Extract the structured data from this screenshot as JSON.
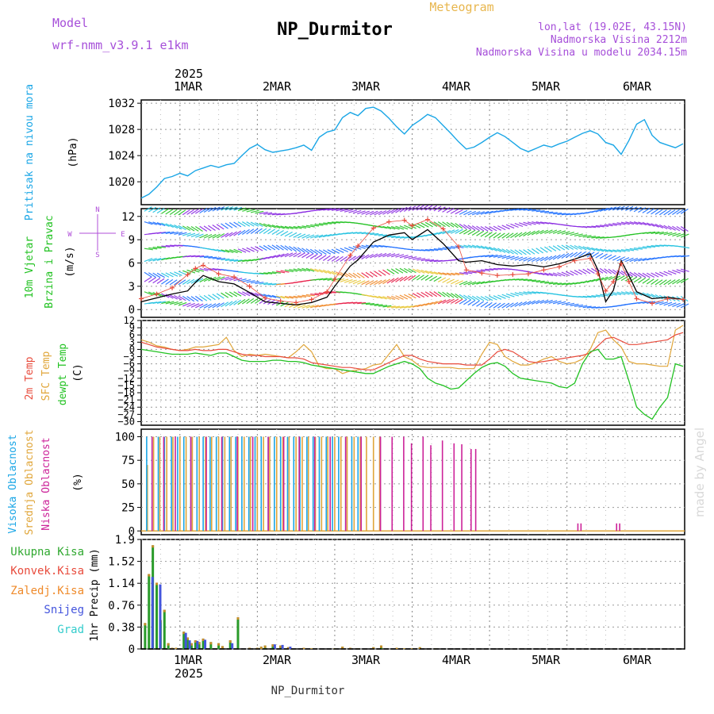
{
  "header": {
    "model_label": "Model",
    "model_name": "wrf-nmm_v3.9.1 e1km",
    "title": "NP_Durmitor",
    "subtitle": "Meteogram",
    "coords": "lon,lat (19.02E, 43.15N)",
    "altitude": "Nadmorska Visina 2212m",
    "altitude_model": "Nadmorska Visina u modelu 2034.15m",
    "watermark": "made by Angel",
    "footer": "NP_Durmitor"
  },
  "colors": {
    "pressure": "#1aa6e6",
    "wind_speed": "#000000",
    "gust": "#e84b3c",
    "t2m": "#e84b3c",
    "sfc": "#e0a63a",
    "dewpt": "#22c222",
    "high": "#1aa6e6",
    "mid": "#e0a63a",
    "low": "#cc2299",
    "precip_total": "#2a9b2a",
    "precip_conv": "#e84b3c",
    "precip_frz": "#ef8a2a",
    "precip_snow": "#4455dd",
    "precip_grad": "#33cccc"
  },
  "chart_data": [
    {
      "type": "line",
      "panel": "pressure",
      "ylabel_1": "Pritisak na nivou mora",
      "ylabel_unit": "(hPa)",
      "ylim": [
        1016.5,
        1032.5
      ],
      "yticks": [
        "1020",
        "1024",
        "1028",
        "1032"
      ],
      "top_axis": {
        "year": "2025",
        "days": [
          "1MAR",
          "2MAR",
          "3MAR",
          "4MAR",
          "5MAR",
          "6MAR"
        ]
      },
      "x": [
        -0.5,
        -0.4,
        -0.3,
        -0.2,
        -0.1,
        0,
        0.1,
        0.2,
        0.3,
        0.4,
        0.5,
        0.6,
        0.7,
        0.8,
        0.9,
        1,
        1.1,
        1.2,
        1.3,
        1.4,
        1.5,
        1.6,
        1.7,
        1.8,
        1.9,
        2,
        2.1,
        2.2,
        2.3,
        2.4,
        2.5,
        2.6,
        2.7,
        2.8,
        2.9,
        3,
        3.1,
        3.2,
        3.3,
        3.4,
        3.5,
        3.6,
        3.7,
        3.8,
        3.9,
        4,
        4.1,
        4.2,
        4.3,
        4.4,
        4.5,
        4.6,
        4.7,
        4.8,
        4.9,
        5,
        5.1,
        5.2,
        5.3,
        5.4,
        5.5,
        5.6,
        5.7,
        5.8,
        5.9,
        6,
        6.1,
        6.2,
        6.3,
        6.4,
        6.5
      ],
      "values": [
        1017.5,
        1018.1,
        1019.2,
        1020.5,
        1020.8,
        1021.3,
        1020.9,
        1021.7,
        1022.1,
        1022.5,
        1022.2,
        1022.6,
        1022.8,
        1024.0,
        1025.1,
        1025.7,
        1024.9,
        1024.5,
        1024.7,
        1024.9,
        1025.2,
        1025.6,
        1024.8,
        1026.8,
        1027.6,
        1027.9,
        1029.8,
        1030.6,
        1030.1,
        1031.2,
        1031.4,
        1030.8,
        1029.7,
        1028.4,
        1027.3,
        1028.6,
        1029.4,
        1030.3,
        1029.8,
        1028.6,
        1027.4,
        1026.1,
        1025.0,
        1025.3,
        1026.0,
        1026.8,
        1027.5,
        1026.9,
        1026.0,
        1025.1,
        1024.6,
        1025.1,
        1025.6,
        1025.3,
        1025.8,
        1026.2,
        1026.8,
        1027.4,
        1027.8,
        1027.3,
        1026.0,
        1025.6,
        1024.2,
        1026.3,
        1028.8,
        1029.5,
        1027.1,
        1026.0,
        1025.6,
        1025.2,
        1025.8
      ]
    },
    {
      "type": "line",
      "panel": "wind",
      "ylabel_1": "10m Vjetar",
      "ylabel_2": "Brzina i Pravac",
      "ylabel_unit": "(m/s)",
      "compass": {
        "north": "N",
        "south": "S",
        "west": "W",
        "east": "E"
      },
      "ylim": [
        -1,
        13
      ],
      "yticks": [
        "0",
        "3",
        "6",
        "9",
        "12"
      ],
      "series": [
        {
          "x": [
            -0.5,
            -0.3,
            -0.1,
            0.1,
            0.2,
            0.3,
            0.5,
            0.7,
            0.9,
            1.1,
            1.3,
            1.5,
            1.7,
            1.9,
            2.0,
            2.2,
            2.3,
            2.5,
            2.7,
            2.9,
            3.0,
            3.2,
            3.4,
            3.6,
            3.7,
            3.9,
            4.1,
            4.3,
            4.5,
            4.7,
            4.9,
            5.1,
            5.3,
            5.4,
            5.5,
            5.6,
            5.7,
            5.8,
            5.9,
            6.1,
            6.3,
            6.5
          ],
          "values": [
            1.0,
            1.5,
            2.0,
            2.4,
            3.5,
            4.4,
            3.6,
            3.3,
            2.2,
            1.0,
            0.8,
            0.6,
            0.9,
            1.6,
            3.0,
            5.6,
            6.4,
            8.7,
            9.6,
            9.9,
            9.0,
            10.3,
            8.5,
            6.3,
            6.1,
            6.3,
            5.8,
            5.6,
            5.8,
            5.5,
            5.9,
            6.5,
            7.2,
            5.1,
            1.0,
            2.5,
            6.3,
            4.4,
            2.3,
            1.4,
            1.6,
            1.3
          ]
        },
        {
          "x": [
            -0.5,
            -0.3,
            -0.1,
            0.1,
            0.2,
            0.3,
            0.5,
            0.7,
            0.9,
            1.1,
            1.3,
            1.5,
            1.7,
            1.9,
            2.0,
            2.2,
            2.3,
            2.5,
            2.7,
            2.9,
            3.0,
            3.2,
            3.4,
            3.6,
            3.7,
            3.9,
            4.1,
            4.3,
            4.5,
            4.7,
            4.9,
            5.1,
            5.3,
            5.4,
            5.5,
            5.6,
            5.7,
            5.8,
            5.9,
            6.1,
            6.3,
            6.5
          ],
          "values": [
            1.4,
            2.0,
            2.8,
            4.5,
            5.3,
            5.7,
            4.6,
            4.2,
            3.0,
            1.5,
            1.1,
            0.9,
            1.3,
            2.3,
            3.9,
            7.0,
            8.2,
            10.5,
            11.3,
            11.5,
            10.8,
            11.6,
            10.4,
            8.1,
            5.1,
            4.7,
            4.4,
            4.5,
            4.6,
            5.1,
            5.5,
            6.3,
            6.6,
            4.6,
            2.4,
            3.6,
            5.9,
            3.6,
            1.4,
            0.8,
            1.4,
            1.3
          ]
        }
      ]
    },
    {
      "type": "line",
      "panel": "temperature",
      "ylabel_1": "2m Temp",
      "ylabel_2": "SFC Temp",
      "ylabel_3": "dewpt Temp",
      "ylabel_unit": "(C)",
      "ylim": [
        -31.5,
        12
      ],
      "yticks": [
        "12",
        "9",
        "6",
        "3",
        "0",
        "−3",
        "−6",
        "−9",
        "−12",
        "−15",
        "−18",
        "−21",
        "−24",
        "−27",
        "−30"
      ],
      "x": [
        -0.5,
        -0.4,
        -0.3,
        -0.2,
        -0.1,
        0,
        0.1,
        0.2,
        0.3,
        0.4,
        0.5,
        0.6,
        0.7,
        0.8,
        0.9,
        1,
        1.1,
        1.2,
        1.3,
        1.4,
        1.5,
        1.6,
        1.7,
        1.8,
        1.9,
        2,
        2.1,
        2.2,
        2.3,
        2.4,
        2.5,
        2.6,
        2.7,
        2.8,
        2.9,
        3,
        3.1,
        3.2,
        3.3,
        3.4,
        3.5,
        3.6,
        3.7,
        3.8,
        3.9,
        4,
        4.1,
        4.2,
        4.3,
        4.4,
        4.5,
        4.6,
        4.7,
        4.8,
        4.9,
        5,
        5.1,
        5.2,
        5.3,
        5.4,
        5.5,
        5.6,
        5.7,
        5.8,
        5.9,
        6,
        6.1,
        6.2,
        6.3,
        6.4,
        6.5
      ],
      "series": [
        {
          "values": [
            3,
            2,
            1,
            0.5,
            0,
            -0.5,
            -0.5,
            0,
            -0.5,
            -0.5,
            0,
            0,
            -1,
            -2,
            -2.5,
            -2.5,
            -3,
            -3,
            -3,
            -3.5,
            -3.5,
            -4,
            -5.5,
            -6,
            -6.5,
            -7,
            -7.5,
            -7.5,
            -8,
            -8.5,
            -8.5,
            -7,
            -5.5,
            -4,
            -2.5,
            -2.5,
            -4,
            -5,
            -5.5,
            -6,
            -6,
            -6,
            -6.5,
            -6.5,
            -6.5,
            -4,
            -1,
            0,
            -1,
            -3,
            -5,
            -5.5,
            -5,
            -4.5,
            -4,
            -3.5,
            -3,
            -2.5,
            -1.5,
            1.5,
            4.5,
            5,
            3.5,
            2,
            2,
            2.5,
            3,
            3.5,
            4,
            6,
            7
          ]
        },
        {
          "values": [
            4,
            3,
            1.5,
            1,
            0,
            -0.5,
            0,
            1,
            1,
            1.5,
            2,
            5,
            -0.5,
            -3,
            -2,
            -2.5,
            -2,
            -2.5,
            -3,
            -3.5,
            -1,
            2,
            -1,
            -7,
            -8,
            -8,
            -10,
            -9,
            -8.5,
            -8,
            -6.5,
            -6,
            -2,
            2,
            -3,
            -4.5,
            -7,
            -7.5,
            -7.5,
            -7.5,
            -7.5,
            -8,
            -8,
            -8,
            -2,
            3,
            2,
            -3,
            -5,
            -6.5,
            -6.5,
            -5.5,
            -4,
            -3,
            -5,
            -6,
            -5.5,
            -4,
            0,
            7,
            8,
            4,
            1,
            -5,
            -6,
            -6,
            -6.5,
            -7,
            -7,
            8,
            10
          ]
        },
        {
          "values": [
            0,
            -0.5,
            -1,
            -1.5,
            -2,
            -2,
            -2,
            -1.5,
            -2,
            -2.5,
            -1.5,
            -1.5,
            -3,
            -4.5,
            -5,
            -5,
            -5,
            -4.5,
            -4.5,
            -5,
            -5,
            -5.5,
            -6.5,
            -7,
            -7.5,
            -8,
            -8.5,
            -9,
            -9.5,
            -10,
            -10,
            -8.5,
            -7,
            -6,
            -5,
            -6,
            -8,
            -12,
            -14,
            -15,
            -16.5,
            -16,
            -13,
            -10,
            -7.5,
            -6,
            -5.5,
            -7,
            -10,
            -12,
            -12.5,
            -13,
            -13.5,
            -14,
            -15.5,
            -16,
            -14,
            -6,
            -1,
            0,
            -4,
            -4,
            -3,
            -13,
            -24,
            -27,
            -29,
            -24,
            -20,
            -6,
            -7
          ]
        }
      ]
    },
    {
      "type": "bar",
      "panel": "cloud",
      "ylabel_1": "Visoka Oblacnost",
      "ylabel_2": "Srednja Oblacnost",
      "ylabel_3": "Niska Oblacnost",
      "ylabel_unit": "(%)",
      "ylim": [
        0,
        100
      ],
      "yticks": [
        "0",
        "25",
        "50",
        "75",
        "100"
      ],
      "high": {
        "x": [
          -0.45,
          -0.38,
          -0.3,
          -0.22,
          -0.13,
          -0.05,
          0.03,
          0.12,
          0.2,
          0.28,
          0.37,
          0.45,
          0.53,
          0.62,
          0.7,
          0.78,
          0.87,
          0.95,
          1.03,
          1.12,
          1.2,
          1.28,
          1.37,
          1.45,
          1.53,
          1.62,
          1.7,
          1.78,
          1.87,
          1.95,
          2.03,
          2.12,
          2.2,
          2.28
        ],
        "values": [
          100,
          100,
          100,
          100,
          100,
          100,
          100,
          100,
          100,
          100,
          100,
          100,
          100,
          100,
          100,
          100,
          100,
          100,
          100,
          100,
          100,
          100,
          100,
          100,
          100,
          100,
          100,
          100,
          100,
          100,
          100,
          100,
          100,
          100
        ]
      },
      "mid": {
        "x": [
          -0.42,
          -0.34,
          -0.26,
          -0.17,
          -0.09,
          0.0,
          0.08,
          0.16,
          0.25,
          0.33,
          0.41,
          0.5,
          0.58,
          0.66,
          0.75,
          0.83,
          0.91,
          1.0,
          1.08,
          1.16,
          1.25,
          1.33,
          1.41,
          1.5,
          1.58,
          1.66,
          1.75,
          1.83,
          1.91,
          2.0,
          2.08,
          2.16,
          2.25,
          2.33,
          2.41,
          2.5,
          2.58
        ],
        "values": [
          70,
          100,
          100,
          100,
          100,
          100,
          100,
          100,
          100,
          100,
          100,
          100,
          100,
          100,
          100,
          100,
          100,
          100,
          100,
          100,
          100,
          100,
          100,
          100,
          100,
          100,
          100,
          100,
          100,
          100,
          100,
          100,
          100,
          100,
          100,
          100,
          100
        ]
      },
      "low": {
        "x": [
          -0.4,
          -0.25,
          -0.1,
          0.1,
          0.3,
          0.5,
          0.7,
          0.9,
          1.1,
          1.3,
          1.5,
          1.7,
          1.9,
          2.1,
          2.3,
          2.55,
          2.7,
          2.85,
          2.95,
          3.1,
          3.2,
          3.35,
          3.5,
          3.6,
          3.72,
          3.78,
          5.1,
          5.14,
          5.6,
          5.64
        ],
        "values": [
          100,
          100,
          100,
          100,
          100,
          100,
          100,
          100,
          100,
          100,
          100,
          100,
          100,
          100,
          100,
          100,
          100,
          100,
          93,
          100,
          91,
          96,
          93,
          92,
          87,
          87,
          8,
          8,
          8,
          8
        ]
      }
    },
    {
      "type": "bar",
      "panel": "precip",
      "ylabel": "1hr Precip (mm)",
      "legend": [
        "Ukupna Kisa",
        "Konvek.Kisa",
        "Zaledj.Kisa",
        "Snijeg",
        "Grad"
      ],
      "ylim": [
        0,
        1.9
      ],
      "yticks": [
        "0",
        "0.38",
        "0.76",
        "1.14",
        "1.52",
        "1.9"
      ],
      "bottom_axis": {
        "year": "2025",
        "days": [
          "1MAR",
          "2MAR",
          "3MAR",
          "4MAR",
          "5MAR",
          "6MAR"
        ]
      },
      "total": {
        "x": [
          -0.45,
          -0.4,
          -0.35,
          -0.3,
          -0.25,
          -0.2,
          -0.15,
          -0.1,
          -0.05,
          0.05,
          0.1,
          0.15,
          0.2,
          0.25,
          0.3,
          0.4,
          0.5,
          0.55,
          0.65,
          0.75,
          0.9,
          1.0,
          1.05,
          1.1,
          1.2,
          1.3,
          1.4,
          1.6,
          1.7,
          2.0,
          2.1,
          2.2,
          2.3,
          2.5,
          2.6,
          2.8,
          2.9,
          3.0,
          3.1,
          3.3
        ],
        "values": [
          0.45,
          1.3,
          1.8,
          1.15,
          0.5,
          0.68,
          0.1,
          0.02,
          0.02,
          0.3,
          0.2,
          0.1,
          0.15,
          0.12,
          0.18,
          0.12,
          0.1,
          0.05,
          0.15,
          0.55,
          0.02,
          0.02,
          0.04,
          0.06,
          0.08,
          0.06,
          0.03,
          0.02,
          0.01,
          0.01,
          0.04,
          0.02,
          0.01,
          0.03,
          0.06,
          0.02,
          0.01,
          0.01,
          0.03,
          0.01
        ]
      },
      "snow": {
        "x": [
          -0.38,
          -0.28,
          0.05,
          0.1,
          0.2,
          0.3,
          0.65,
          1.2,
          1.3,
          1.4
        ],
        "values": [
          1.25,
          1.12,
          0.28,
          0.15,
          0.14,
          0.16,
          0.1,
          0.08,
          0.07,
          0.04
        ]
      }
    }
  ]
}
